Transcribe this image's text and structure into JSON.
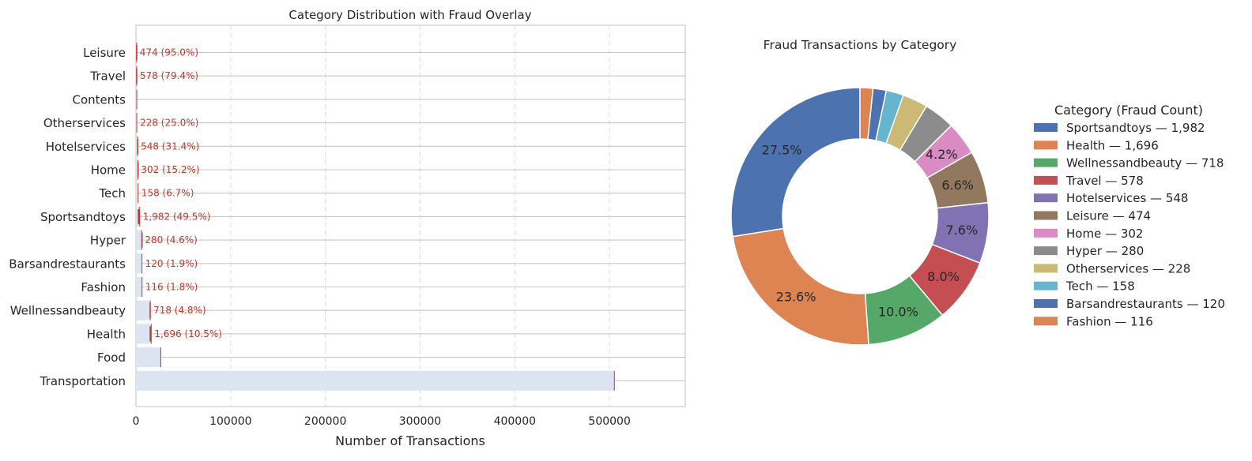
{
  "chart_data": [
    {
      "type": "bar",
      "orientation": "horizontal",
      "title": "Category Distribution with Fraud Overlay",
      "xlabel": "Number of Transactions",
      "ylabel": "",
      "xlim": [
        0,
        580000
      ],
      "xticks": [
        0,
        100000,
        200000,
        300000,
        400000,
        500000
      ],
      "xtick_labels": [
        "0",
        "100000",
        "200000",
        "300000",
        "400000",
        "500000"
      ],
      "grid": "x-dashed",
      "categories": [
        "Leisure",
        "Travel",
        "Contents",
        "Otherservices",
        "Hotelservices",
        "Home",
        "Tech",
        "Sportsandtoys",
        "Hyper",
        "Barsandrestaurants",
        "Fashion",
        "Wellnessandbeauty",
        "Health",
        "Food",
        "Transportation"
      ],
      "series": [
        {
          "name": "",
          "role": "total",
          "color": "#dbe4f0",
          "values": [
            499,
            728,
            885,
            912,
            1744,
            1986,
            2363,
            4002,
            6098,
            6373,
            6454,
            15086,
            16133,
            26254,
            505119
          ]
        },
        {
          "name": "",
          "role": "fraud",
          "color": "#c0392b",
          "values": [
            474,
            578,
            0,
            228,
            548,
            302,
            158,
            1982,
            280,
            120,
            116,
            718,
            1696,
            0,
            0
          ]
        }
      ],
      "data_labels": [
        "474 (95.0%)",
        "578 (79.4%)",
        "",
        "228 (25.0%)",
        "548 (31.4%)",
        "302 (15.2%)",
        "158 (6.7%)",
        "1,982 (49.5%)",
        "280 (4.6%)",
        "120 (1.9%)",
        "116 (1.8%)",
        "718 (4.8%)",
        "1,696 (10.5%)",
        "",
        ""
      ]
    },
    {
      "type": "pie",
      "donut": true,
      "title": "Fraud Transactions by Category",
      "legend_title": "Category (Fraud Count)",
      "legend_position": "right",
      "slices": [
        {
          "label": "Sportsandtoys",
          "value": 1982,
          "color": "#4c72b0",
          "legend": "Sportsandtoys — 1,982",
          "pct_label": "27.5%"
        },
        {
          "label": "Health",
          "value": 1696,
          "color": "#dd8452",
          "legend": "Health — 1,696",
          "pct_label": "23.6%"
        },
        {
          "label": "Wellnessandbeauty",
          "value": 718,
          "color": "#55a868",
          "legend": "Wellnessandbeauty — 718",
          "pct_label": "10.0%"
        },
        {
          "label": "Travel",
          "value": 578,
          "color": "#c44e52",
          "legend": "Travel — 578",
          "pct_label": "8.0%"
        },
        {
          "label": "Hotelservices",
          "value": 548,
          "color": "#8172b3",
          "legend": "Hotelservices — 548",
          "pct_label": "7.6%"
        },
        {
          "label": "Leisure",
          "value": 474,
          "color": "#937860",
          "legend": "Leisure — 474",
          "pct_label": "6.6%"
        },
        {
          "label": "Home",
          "value": 302,
          "color": "#da8bc3",
          "legend": "Home — 302",
          "pct_label": "4.2%"
        },
        {
          "label": "Hyper",
          "value": 280,
          "color": "#8c8c8c",
          "legend": "Hyper — 280",
          "pct_label": ""
        },
        {
          "label": "Otherservices",
          "value": 228,
          "color": "#ccb974",
          "legend": "Otherservices — 228",
          "pct_label": ""
        },
        {
          "label": "Tech",
          "value": 158,
          "color": "#64b5cd",
          "legend": "Tech — 158",
          "pct_label": ""
        },
        {
          "label": "Barsandrestaurants",
          "value": 120,
          "color": "#4c72b0",
          "legend": "Barsandrestaurants — 120",
          "pct_label": ""
        },
        {
          "label": "Fashion",
          "value": 116,
          "color": "#dd8452",
          "legend": "Fashion — 116",
          "pct_label": ""
        }
      ]
    }
  ]
}
